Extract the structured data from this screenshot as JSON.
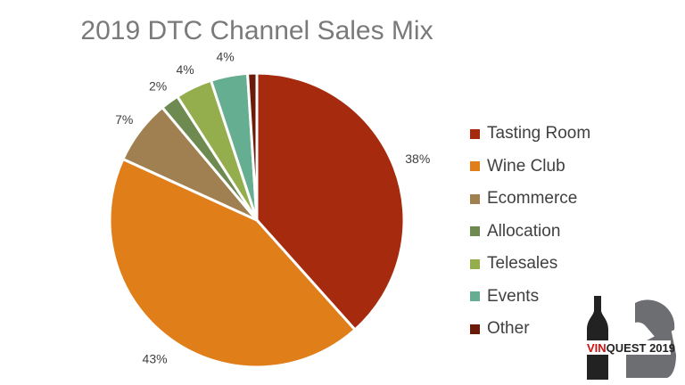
{
  "chart_data": {
    "type": "pie",
    "title": "2019 DTC Channel Sales Mix",
    "categories": [
      "Tasting Room",
      "Wine Club",
      "Ecommerce",
      "Allocation",
      "Telesales",
      "Events",
      "Other"
    ],
    "values": [
      38,
      43,
      7,
      2,
      4,
      4,
      1
    ],
    "labels": [
      "38%",
      "43%",
      "7%",
      "2%",
      "4%",
      "4%",
      ""
    ],
    "colors": [
      "#A52A0E",
      "#E07E1A",
      "#A08050",
      "#6E8A50",
      "#94AE4E",
      "#66AE92",
      "#6B1A0A"
    ],
    "legend_position": "right"
  },
  "logo": {
    "text_red": "VIN",
    "text_black": "QUEST 2019"
  }
}
